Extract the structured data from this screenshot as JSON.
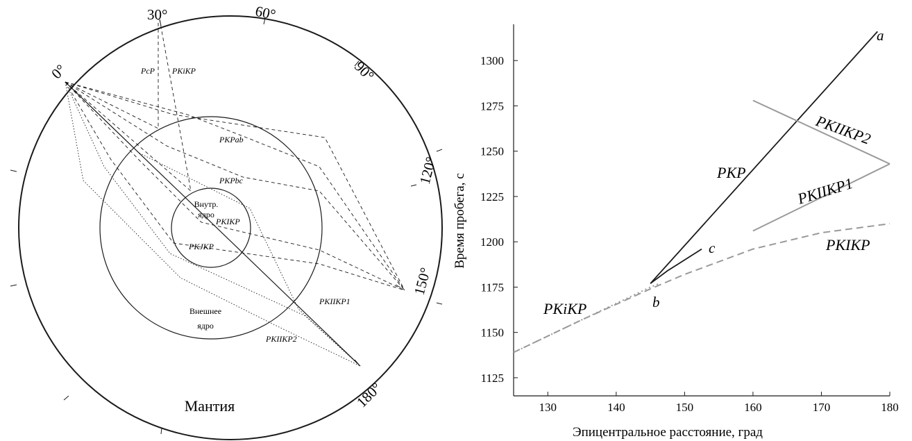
{
  "diagram": {
    "degree_labels": [
      "0°",
      "30°",
      "60°",
      "90°",
      "120°",
      "150°",
      "180°"
    ],
    "ray_labels": {
      "pcp": "PcP",
      "pkikp_upper": "PKiKP",
      "pkpab": "PKPab",
      "pkpbc": "PKPbc",
      "pkikp": "PKIKP",
      "pkjkp": "PKJKP",
      "pkiikp1": "PKIIKP1",
      "pkiikp2": "PKIIKP2"
    },
    "inner_core_label": [
      "Внутр.",
      "ядро"
    ],
    "outer_core_label": [
      "Внешнее",
      "ядро"
    ],
    "mantle_label": "Мантия"
  },
  "chart_data": {
    "type": "line",
    "xlabel": "Эпицентральное расстояние, град",
    "ylabel": "Время пробега, с",
    "xlim": [
      125,
      180
    ],
    "ylim": [
      1115,
      1320
    ],
    "x_ticks": [
      130,
      140,
      150,
      160,
      170,
      180
    ],
    "y_ticks": [
      1125,
      1150,
      1175,
      1200,
      1225,
      1250,
      1275,
      1300
    ],
    "series": [
      {
        "name": "PKP",
        "color": "#1a1a1a",
        "style": "solid",
        "x": [
          145.0,
          178.2
        ],
        "y": [
          1177,
          1316
        ]
      },
      {
        "name": "",
        "color": "#1a1a1a",
        "style": "solid",
        "x": [
          145.0,
          147.5,
          150.0,
          152.5
        ],
        "y": [
          1177,
          1184,
          1190,
          1196
        ]
      },
      {
        "name": "PKiKP",
        "color": "#999999",
        "style": "dotted",
        "x": [
          125.0,
          135.0,
          145.0,
          146.3
        ],
        "y": [
          1139,
          1157,
          1175,
          1177
        ]
      },
      {
        "name": "PKIKP",
        "color": "#999999",
        "style": "dashed",
        "x": [
          125.0,
          135.0,
          145.0,
          150.0,
          160.0,
          170.0,
          180.0
        ],
        "y": [
          1139,
          1157,
          1174,
          1182,
          1196,
          1205,
          1210
        ]
      },
      {
        "name": "PKIIKP2",
        "color": "#999999",
        "style": "solid",
        "x": [
          160.0,
          180.0
        ],
        "y": [
          1278,
          1243
        ]
      },
      {
        "name": "PKIIKP1",
        "color": "#999999",
        "style": "solid",
        "x": [
          160.0,
          180.0
        ],
        "y": [
          1206,
          1243
        ]
      }
    ],
    "annotations": {
      "a": "a",
      "b": "b",
      "c": "c"
    }
  }
}
